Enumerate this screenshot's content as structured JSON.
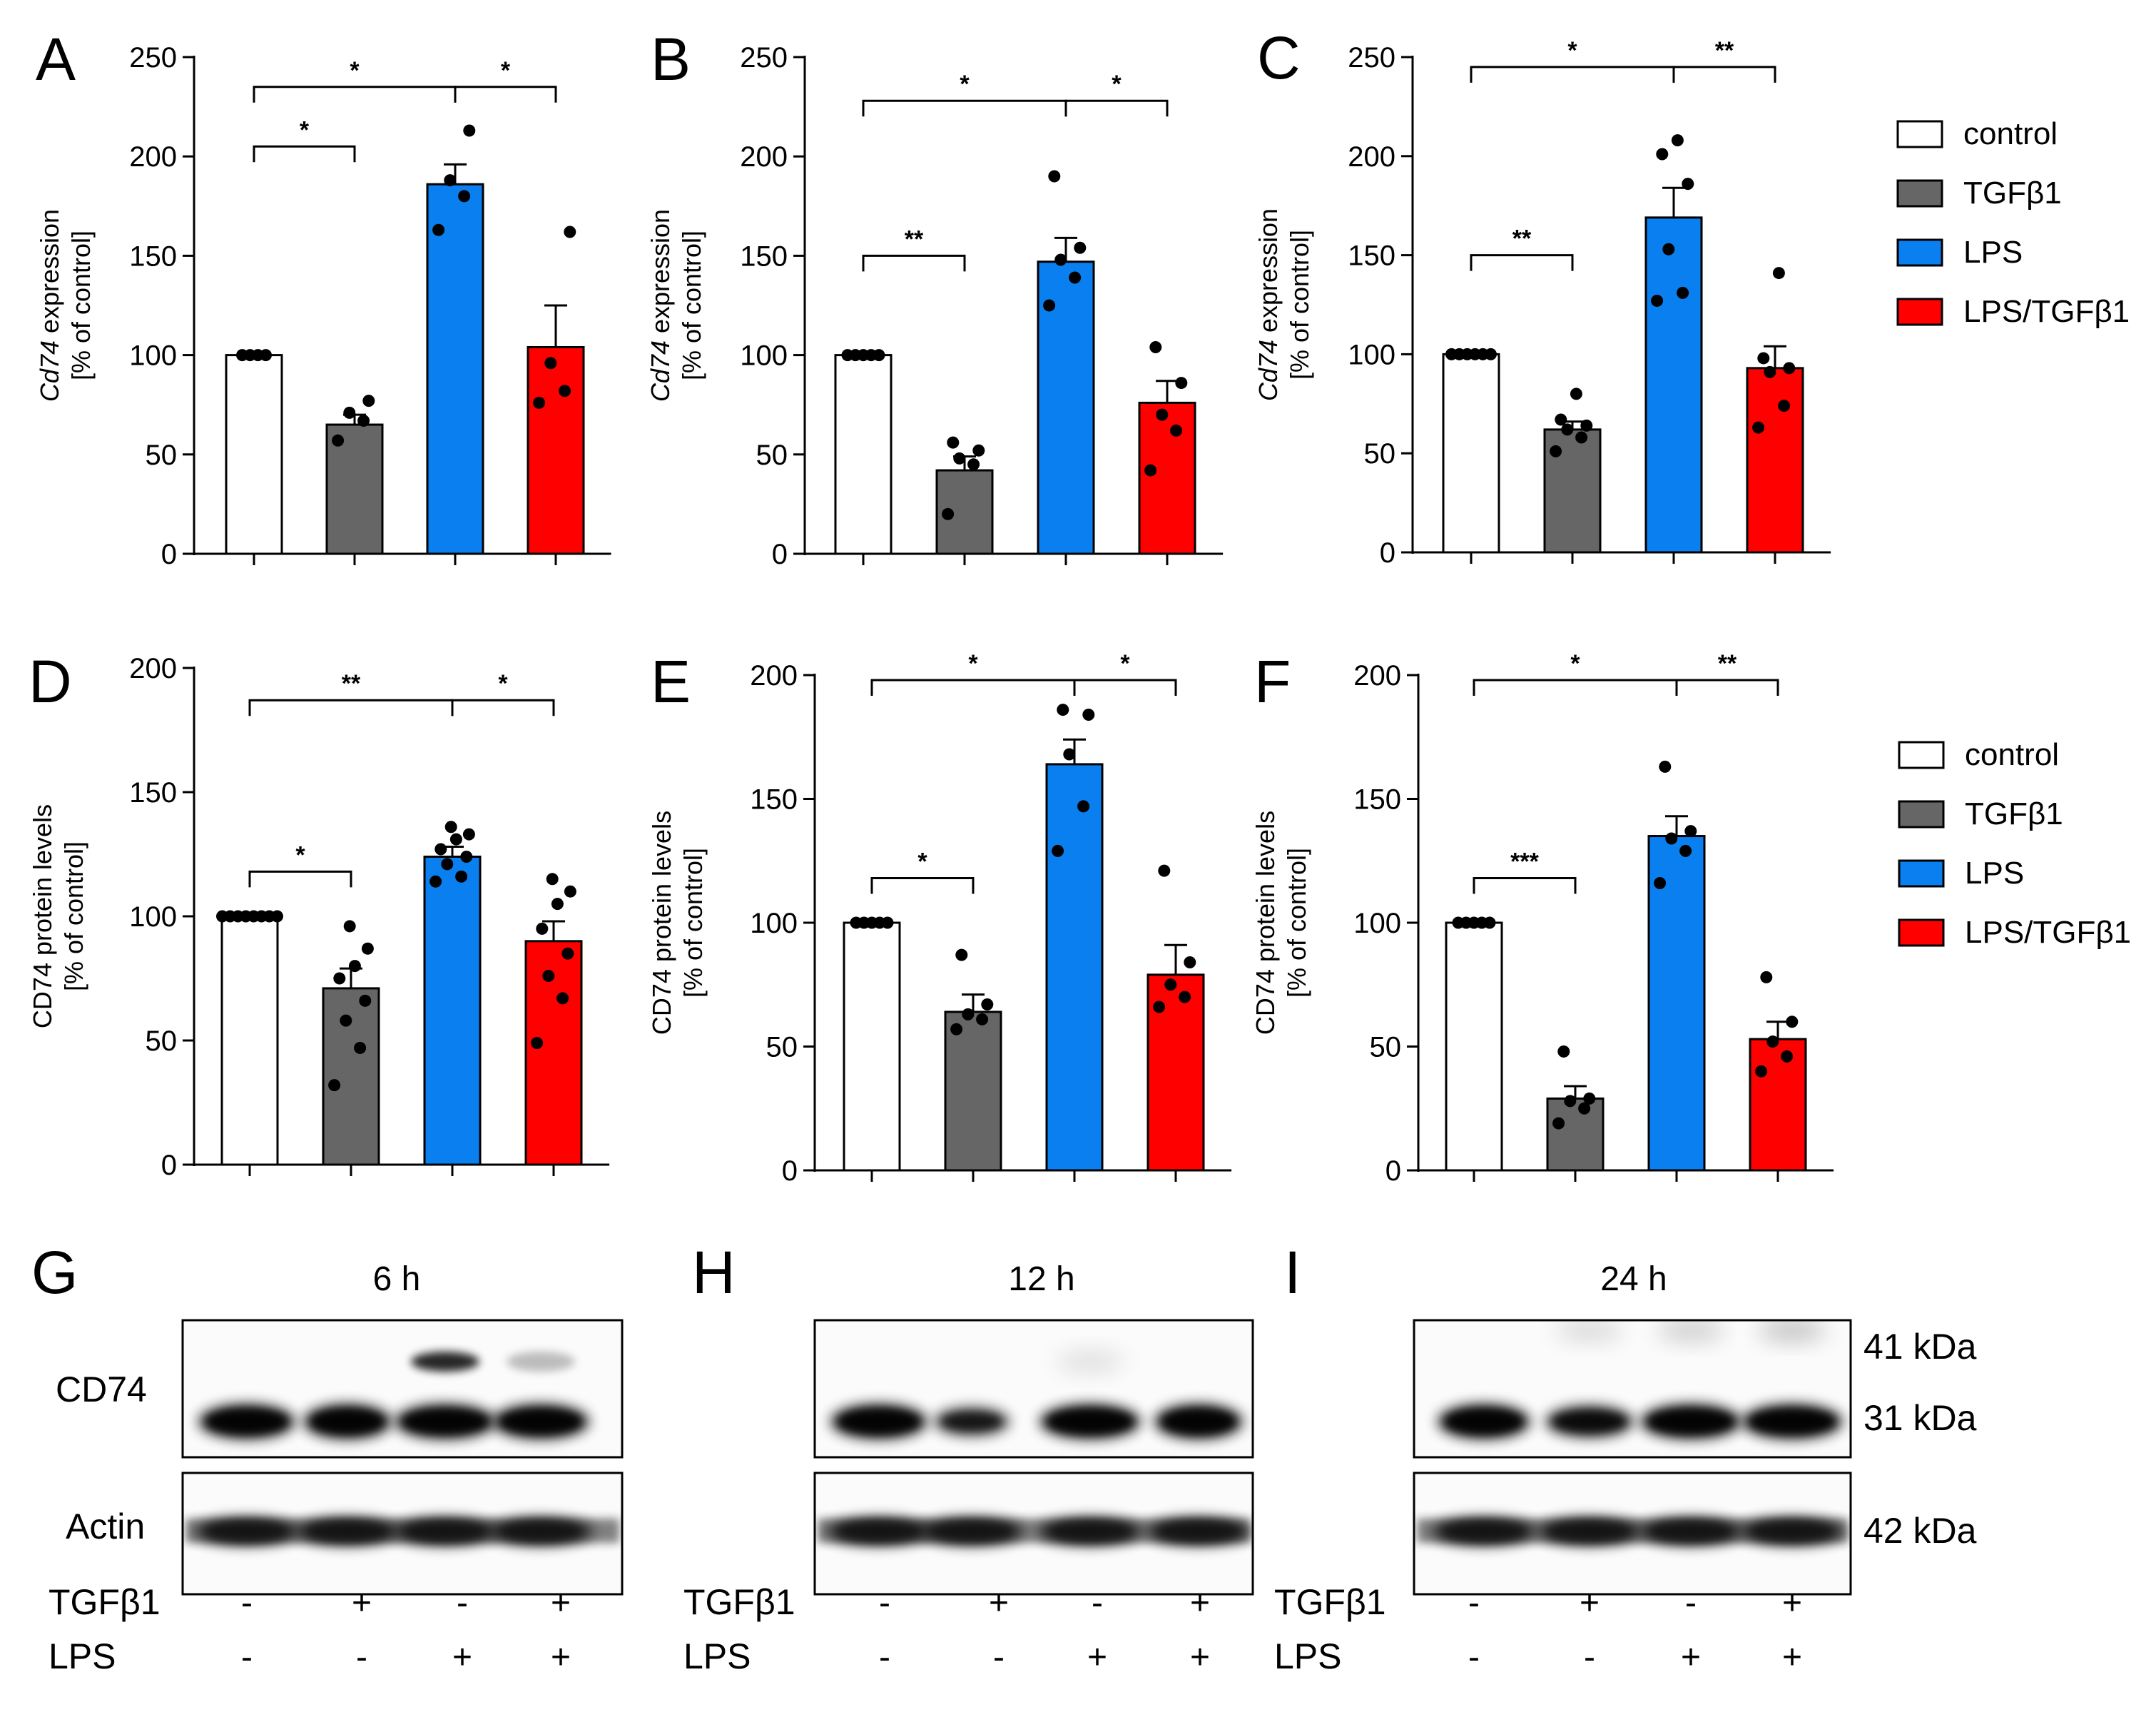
{
  "colors": {
    "control": "#ffffff",
    "TGFb1": "#666666",
    "LPS": "#0a7ff0",
    "LPS_TGFb1": "#ff0000"
  },
  "legend": {
    "entries": [
      {
        "label": "control",
        "color": "#ffffff"
      },
      {
        "label": "TGFβ1",
        "color": "#666666"
      },
      {
        "label": "LPS",
        "color": "#0a7ff0"
      },
      {
        "label": "LPS/TGFβ1",
        "color": "#ff0000"
      }
    ]
  },
  "chart_data": [
    {
      "type": "bar",
      "panel": "A",
      "title": "",
      "categories": [
        "control",
        "TGFβ1",
        "LPS",
        "LPS/TGFβ1"
      ],
      "ylabel_italic": "Cd74",
      "ylabel_rest": " expression",
      "ylabel2": "[% of control]",
      "ylim": [
        0,
        250
      ],
      "yticks": [
        0,
        50,
        100,
        150,
        200,
        250
      ],
      "values": [
        100,
        65,
        186,
        104
      ],
      "errors": [
        0,
        5,
        10,
        21
      ],
      "points": [
        [
          100,
          100,
          100,
          100
        ],
        [
          57,
          67,
          71,
          77
        ],
        [
          163,
          180,
          188,
          213
        ],
        [
          76,
          82,
          96,
          162
        ]
      ],
      "significance": [
        {
          "from": 0,
          "to": 1,
          "label": "*",
          "y": 205
        },
        {
          "from": 0,
          "to": 2,
          "label": "*",
          "y": 235
        },
        {
          "from": 2,
          "to": 3,
          "label": "*",
          "y": 235
        }
      ]
    },
    {
      "type": "bar",
      "panel": "B",
      "title": "",
      "categories": [
        "control",
        "TGFβ1",
        "LPS",
        "LPS/TGFβ1"
      ],
      "ylabel_italic": "Cd74",
      "ylabel_rest": " expression",
      "ylabel2": "[% of control]",
      "ylim": [
        0,
        250
      ],
      "yticks": [
        0,
        50,
        100,
        150,
        200,
        250
      ],
      "values": [
        100,
        42,
        147,
        76
      ],
      "errors": [
        0,
        7,
        12,
        11
      ],
      "points": [
        [
          100,
          100,
          100,
          100,
          100
        ],
        [
          20,
          45,
          48,
          52,
          56
        ],
        [
          125,
          139,
          148,
          154,
          190
        ],
        [
          42,
          62,
          70,
          86,
          104
        ]
      ],
      "significance": [
        {
          "from": 0,
          "to": 1,
          "label": "**",
          "y": 150
        },
        {
          "from": 0,
          "to": 2,
          "label": "*",
          "y": 228
        },
        {
          "from": 2,
          "to": 3,
          "label": "*",
          "y": 228
        }
      ]
    },
    {
      "type": "bar",
      "panel": "C",
      "title": "",
      "categories": [
        "control",
        "TGFβ1",
        "LPS",
        "LPS/TGFβ1"
      ],
      "ylabel_italic": "Cd74",
      "ylabel_rest": " expression",
      "ylabel2": "[% of control]",
      "ylim": [
        0,
        250
      ],
      "yticks": [
        0,
        50,
        100,
        150,
        200,
        250
      ],
      "values": [
        100,
        62,
        169,
        93
      ],
      "errors": [
        0,
        4,
        15,
        11
      ],
      "points": [
        [
          100,
          100,
          100,
          100,
          100,
          100
        ],
        [
          51,
          58,
          62,
          64,
          67,
          80
        ],
        [
          127,
          131,
          153,
          186,
          201,
          208
        ],
        [
          63,
          74,
          91,
          93,
          98,
          141
        ]
      ],
      "significance": [
        {
          "from": 0,
          "to": 1,
          "label": "**",
          "y": 150
        },
        {
          "from": 0,
          "to": 2,
          "label": "*",
          "y": 245
        },
        {
          "from": 2,
          "to": 3,
          "label": "**",
          "y": 245
        }
      ]
    },
    {
      "type": "bar",
      "panel": "D",
      "title": "",
      "categories": [
        "control",
        "TGFβ1",
        "LPS",
        "LPS/TGFβ1"
      ],
      "ylabel_italic": "",
      "ylabel_rest": "CD74 protein levels",
      "ylabel2": "[% of control]",
      "ylim": [
        0,
        200
      ],
      "yticks": [
        0,
        50,
        100,
        150,
        200
      ],
      "values": [
        100,
        71,
        124,
        90
      ],
      "errors": [
        0,
        8,
        4,
        8
      ],
      "points": [
        [
          100,
          100,
          100,
          100,
          100,
          100,
          100,
          100
        ],
        [
          32,
          47,
          58,
          66,
          75,
          80,
          87,
          96
        ],
        [
          114,
          116,
          121,
          124,
          127,
          131,
          133,
          136
        ],
        [
          49,
          67,
          76,
          85,
          95,
          105,
          110,
          115
        ]
      ],
      "significance": [
        {
          "from": 0,
          "to": 1,
          "label": "*",
          "y": 118
        },
        {
          "from": 0,
          "to": 2,
          "label": "**",
          "y": 187
        },
        {
          "from": 2,
          "to": 3,
          "label": "*",
          "y": 187
        }
      ]
    },
    {
      "type": "bar",
      "panel": "E",
      "title": "",
      "categories": [
        "control",
        "TGFβ1",
        "LPS",
        "LPS/TGFβ1"
      ],
      "ylabel_italic": "",
      "ylabel_rest": "CD74 protein levels",
      "ylabel2": "[% of control]",
      "ylim": [
        0,
        200
      ],
      "yticks": [
        0,
        50,
        100,
        150,
        200
      ],
      "values": [
        100,
        64,
        164,
        79
      ],
      "errors": [
        0,
        7,
        10,
        12
      ],
      "points": [
        [
          100,
          100,
          100,
          100,
          100
        ],
        [
          57,
          61,
          63,
          67,
          87
        ],
        [
          129,
          147,
          168,
          184,
          186
        ],
        [
          66,
          70,
          75,
          84,
          121
        ]
      ],
      "significance": [
        {
          "from": 0,
          "to": 1,
          "label": "*",
          "y": 118
        },
        {
          "from": 0,
          "to": 2,
          "label": "*",
          "y": 198
        },
        {
          "from": 2,
          "to": 3,
          "label": "*",
          "y": 198
        }
      ]
    },
    {
      "type": "bar",
      "panel": "F",
      "title": "",
      "categories": [
        "control",
        "TGFβ1",
        "LPS",
        "LPS/TGFβ1"
      ],
      "ylabel_italic": "",
      "ylabel_rest": "CD74 protein levels",
      "ylabel2": "[% of control]",
      "ylim": [
        0,
        200
      ],
      "yticks": [
        0,
        50,
        100,
        150,
        200
      ],
      "values": [
        100,
        29,
        135,
        53
      ],
      "errors": [
        0,
        5,
        8,
        7
      ],
      "points": [
        [
          100,
          100,
          100,
          100,
          100
        ],
        [
          19,
          25,
          28,
          29,
          48
        ],
        [
          116,
          129,
          134,
          137,
          163
        ],
        [
          40,
          46,
          52,
          60,
          78
        ]
      ],
      "significance": [
        {
          "from": 0,
          "to": 1,
          "label": "***",
          "y": 118
        },
        {
          "from": 0,
          "to": 2,
          "label": "*",
          "y": 198
        },
        {
          "from": 2,
          "to": 3,
          "label": "**",
          "y": 198
        }
      ]
    }
  ],
  "blots": {
    "panels": [
      {
        "letter": "G",
        "time": "6 h"
      },
      {
        "letter": "H",
        "time": "12 h"
      },
      {
        "letter": "I",
        "time": "24 h"
      }
    ],
    "row_labels": {
      "top": "CD74",
      "bottom": "Actin"
    },
    "kda": {
      "upper": "41 kDa",
      "middle": "31 kDa",
      "lower": "42 kDa"
    },
    "treatments": {
      "tgf_label": "TGFβ1",
      "lps_label": "LPS",
      "tgf": [
        "-",
        "+",
        "-",
        "+"
      ],
      "lps": [
        "-",
        "-",
        "+",
        "+"
      ]
    }
  }
}
